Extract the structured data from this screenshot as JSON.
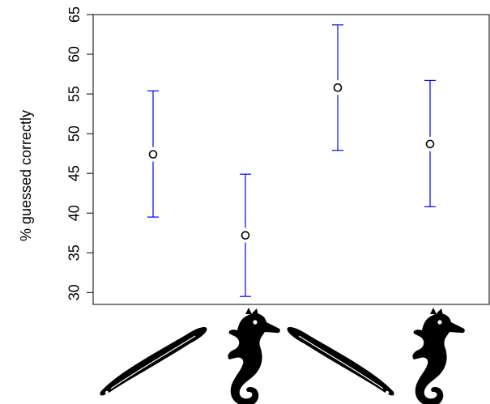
{
  "chart_data": {
    "type": "scatter",
    "title": "",
    "xlabel": "",
    "ylabel": "% guessed correctly",
    "ylim": [
      28.5,
      65
    ],
    "yticks": [
      30,
      35,
      40,
      45,
      50,
      55,
      60,
      65
    ],
    "grid": false,
    "legend": "none",
    "categories": [
      "eel",
      "seahorse",
      "eel",
      "seahorse"
    ],
    "category_icons": [
      "eel-icon",
      "seahorse-icon",
      "eel-icon-mirrored",
      "seahorse-icon"
    ],
    "points": [
      {
        "x": 1,
        "y": 47.4,
        "lower": 39.5,
        "upper": 55.4
      },
      {
        "x": 2,
        "y": 37.2,
        "lower": 29.5,
        "upper": 44.9
      },
      {
        "x": 3,
        "y": 55.8,
        "lower": 47.9,
        "upper": 63.7
      },
      {
        "x": 4,
        "y": 48.7,
        "lower": 40.8,
        "upper": 56.7
      }
    ],
    "colors": {
      "point": "#000000",
      "error_bar": "#0000ff",
      "axis": "#000000",
      "icon": "#000000"
    }
  }
}
